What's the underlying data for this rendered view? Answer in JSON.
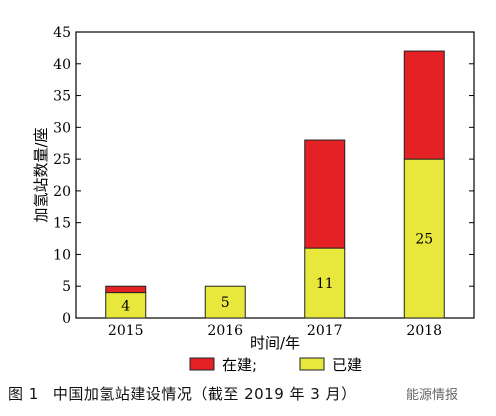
{
  "chart_data": {
    "type": "bar",
    "stacked": true,
    "categories": [
      "2015",
      "2016",
      "2017",
      "2018"
    ],
    "series": [
      {
        "name": "已建",
        "values": [
          4,
          5,
          11,
          25
        ],
        "color": "#e8e83c",
        "show_labels": true
      },
      {
        "name": "在建;",
        "values": [
          1,
          0,
          17,
          17
        ],
        "color": "#e42125",
        "show_labels": false
      }
    ],
    "xlabel": "时间/年",
    "ylabel": "加氢站数量/座",
    "ylim": [
      0,
      45
    ],
    "yticks": [
      0,
      5,
      10,
      15,
      20,
      25,
      30,
      35,
      40,
      45
    ],
    "legend_position": "bottom",
    "legend_order": [
      "在建;",
      "已建"
    ],
    "grid": false
  },
  "caption": {
    "figure_number": "图 1",
    "text": "中国加氢站建设情况（截至 2019 年 3 月）"
  },
  "watermark": "能源情报"
}
